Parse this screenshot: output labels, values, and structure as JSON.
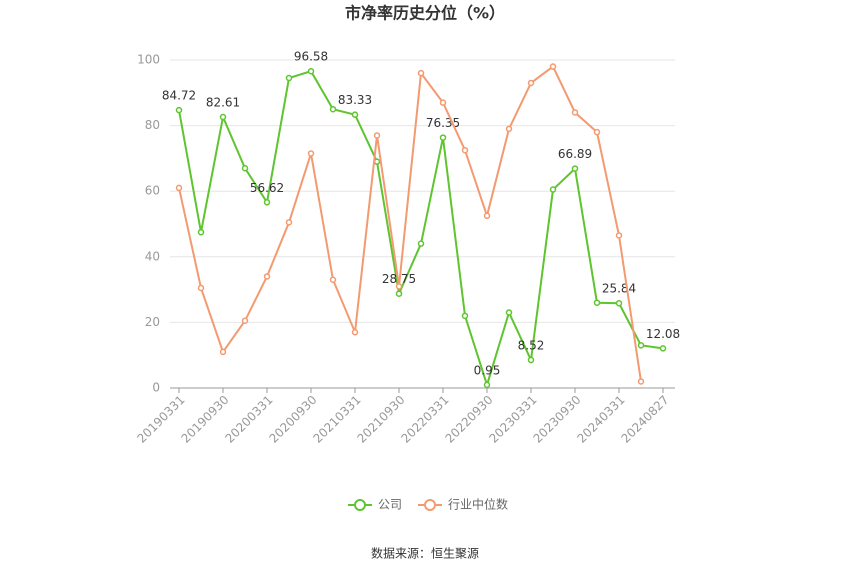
{
  "chart_data": {
    "type": "line",
    "title": "市净率历史分位（%）",
    "source": "数据来源：恒生聚源",
    "categories": [
      "20190331",
      null,
      "20190930",
      null,
      "20200331",
      null,
      "20200930",
      null,
      "20210331",
      null,
      "20210930",
      null,
      "20220331",
      null,
      "20220930",
      null,
      "20230331",
      null,
      "20230930",
      null,
      "20240331",
      null,
      "20240827"
    ],
    "series": [
      {
        "name": "公司",
        "color": "#5ec42f",
        "values": [
          84.72,
          47.5,
          82.61,
          67,
          56.62,
          94.5,
          96.58,
          85,
          83.33,
          69,
          28.75,
          44,
          76.35,
          22,
          0.95,
          23,
          8.52,
          60.5,
          66.89,
          26,
          25.84,
          13,
          12.08
        ],
        "value_labels": [
          "84.72",
          null,
          "82.61",
          null,
          "56.62",
          null,
          "96.58",
          null,
          "83.33",
          null,
          "28.75",
          null,
          "76.35",
          null,
          "0.95",
          null,
          "8.52",
          null,
          "66.89",
          null,
          "25.84",
          null,
          "12.08"
        ]
      },
      {
        "name": "行业中位数",
        "color": "#f39a70",
        "values": [
          61,
          30.5,
          11,
          20.5,
          34,
          50.5,
          71.5,
          33,
          17,
          77,
          31,
          96,
          87,
          72.5,
          52.5,
          79,
          93,
          98,
          84,
          78,
          46.5,
          2,
          null
        ]
      }
    ],
    "ylim": [
      0,
      100
    ],
    "yticks": [
      0,
      20,
      40,
      60,
      80,
      100
    ],
    "grid": true
  }
}
